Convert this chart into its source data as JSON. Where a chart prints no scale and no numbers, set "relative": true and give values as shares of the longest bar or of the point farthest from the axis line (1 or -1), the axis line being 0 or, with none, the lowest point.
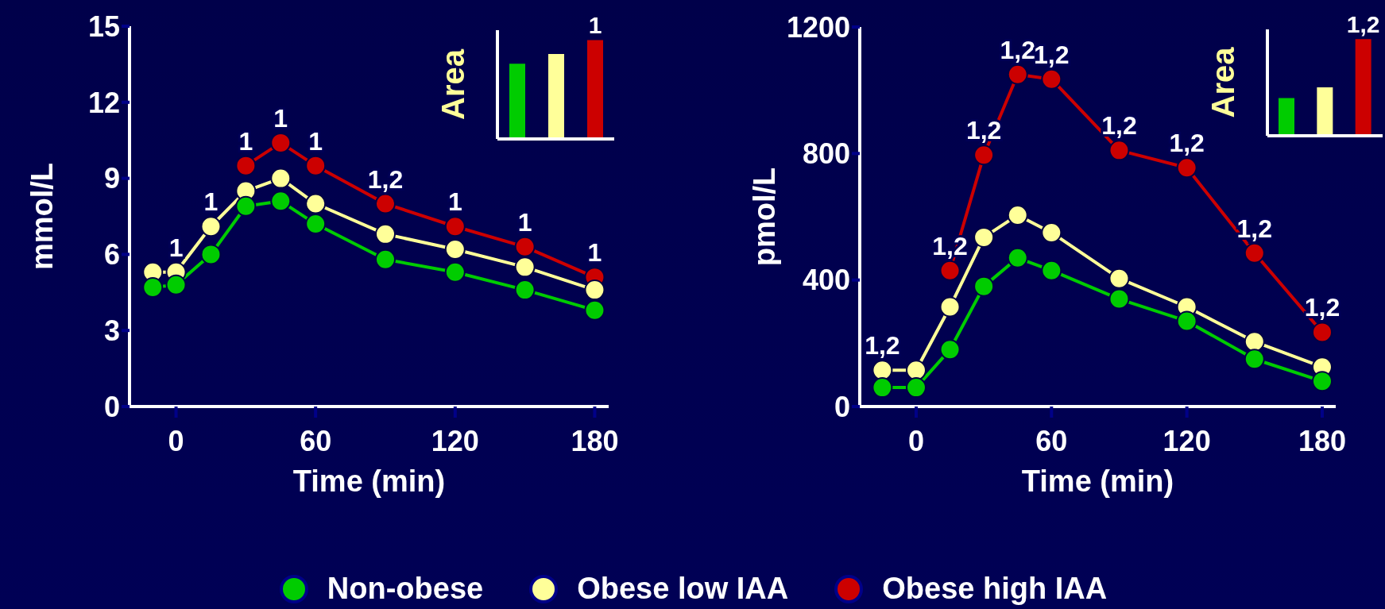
{
  "chart_data": [
    {
      "type": "line",
      "xlabel": "Time (min)",
      "ylabel": "mmol/L",
      "x": [
        -10,
        0,
        15,
        30,
        45,
        60,
        90,
        120,
        150,
        180
      ],
      "xlim": [
        -20,
        186
      ],
      "xticks": [
        0,
        60,
        120,
        180
      ],
      "ylim": [
        0,
        15
      ],
      "yticks": [
        0,
        3,
        6,
        9,
        12,
        15
      ],
      "marker": "circle",
      "legend": "bottom",
      "series": [
        {
          "name": "Non-obese",
          "color": "#00cc00",
          "values": [
            4.7,
            4.8,
            6.0,
            7.9,
            8.1,
            7.2,
            5.8,
            5.3,
            4.6,
            3.8
          ]
        },
        {
          "name": "Obese low IAA",
          "color": "#ffff99",
          "values": [
            5.3,
            5.3,
            7.1,
            8.5,
            9.0,
            8.0,
            6.8,
            6.2,
            5.5,
            4.6
          ]
        },
        {
          "name": "Obese high IAA",
          "color": "#cc0000",
          "values": [
            null,
            null,
            null,
            9.5,
            10.4,
            9.5,
            8.0,
            7.1,
            6.3,
            5.1
          ]
        }
      ],
      "annotations": [
        {
          "text": "1",
          "x": 0,
          "y": 5.3
        },
        {
          "text": "1",
          "x": 15,
          "y": 7.1
        },
        {
          "text": "1",
          "x": 30,
          "y": 9.5
        },
        {
          "text": "1",
          "x": 45,
          "y": 10.4
        },
        {
          "text": "1",
          "x": 60,
          "y": 9.5
        },
        {
          "text": "1,2",
          "x": 90,
          "y": 8.0
        },
        {
          "text": "1",
          "x": 120,
          "y": 7.1
        },
        {
          "text": "1",
          "x": 150,
          "y": 6.3
        },
        {
          "text": "1",
          "x": 180,
          "y": 5.1
        }
      ]
    },
    {
      "type": "bar",
      "ylabel": "Area",
      "categories": [
        null,
        null,
        null
      ],
      "values": [
        0.76,
        0.86,
        1
      ],
      "colors": [
        "#00cc00",
        "#ffff99",
        "#cc0000"
      ],
      "relative": true,
      "annotations": [
        "1"
      ]
    },
    {
      "type": "line",
      "xlabel": "Time (min)",
      "ylabel": "pmol/L",
      "x": [
        -15,
        0,
        15,
        30,
        45,
        60,
        90,
        120,
        150,
        180
      ],
      "xlim": [
        -25,
        186
      ],
      "xticks": [
        0,
        60,
        120,
        180
      ],
      "ylim": [
        0,
        1200
      ],
      "yticks": [
        0,
        400,
        800,
        1200
      ],
      "marker": "circle",
      "series": [
        {
          "color": "#00cc00",
          "values": [
            60,
            60,
            180,
            380,
            470,
            430,
            340,
            270,
            150,
            80
          ]
        },
        {
          "color": "#ffff99",
          "values": [
            115,
            115,
            315,
            535,
            605,
            550,
            405,
            315,
            205,
            125
          ]
        },
        {
          "color": "#cc0000",
          "values": [
            null,
            null,
            430,
            795,
            1050,
            1035,
            810,
            755,
            485,
            235
          ]
        }
      ],
      "annotations": [
        {
          "text": "1,2",
          "x": -15,
          "y": 115
        },
        {
          "text": "1,2",
          "x": 15,
          "y": 430
        },
        {
          "text": "1,2",
          "x": 30,
          "y": 795
        },
        {
          "text": "1,2",
          "x": 45,
          "y": 1050
        },
        {
          "text": "1,2",
          "x": 60,
          "y": 1035
        },
        {
          "text": "1,2",
          "x": 90,
          "y": 810
        },
        {
          "text": "1,2",
          "x": 120,
          "y": 755
        },
        {
          "text": "1,2",
          "x": 150,
          "y": 485
        },
        {
          "text": "1,2",
          "x": 180,
          "y": 235
        }
      ]
    },
    {
      "type": "bar",
      "ylabel": "Area",
      "categories": [
        null,
        null,
        null
      ],
      "values": [
        0.39,
        0.5,
        1
      ],
      "colors": [
        "#00cc00",
        "#ffff99",
        "#cc0000"
      ],
      "relative": true,
      "annotations": [
        "1,2"
      ]
    }
  ]
}
